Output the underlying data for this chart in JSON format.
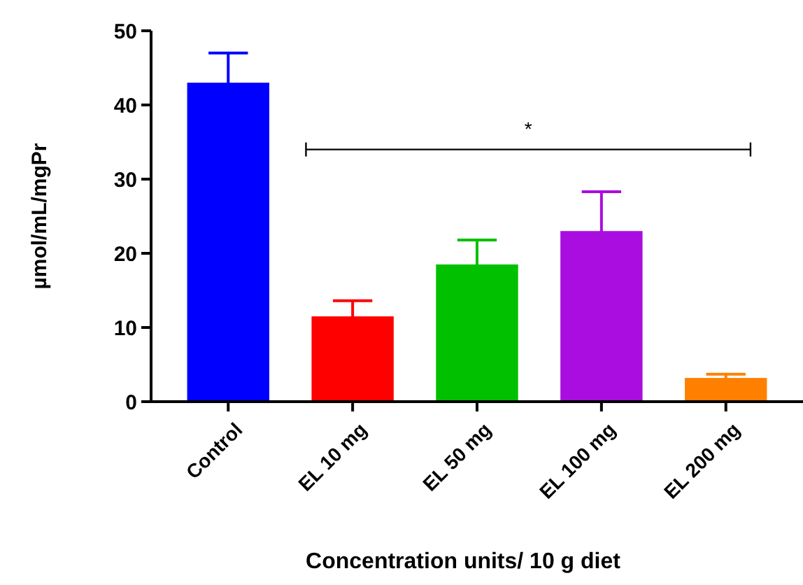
{
  "chart_data": {
    "type": "bar",
    "xlabel": "Concentration units/ 10 g diet",
    "ylabel": "µmol/mL/mgPr",
    "categories": [
      "Control",
      "EL 10 mg",
      "EL 50 mg",
      "EL 100 mg",
      "EL 200 mg"
    ],
    "values": [
      43,
      11.5,
      18.5,
      23,
      3.2
    ],
    "colors": [
      "#0000ff",
      "#ff0000",
      "#00c000",
      "#a90ddf",
      "#ff8000"
    ],
    "errors": [
      4,
      2.1,
      3.3,
      5.3,
      0.5
    ],
    "ylim": [
      0,
      50
    ],
    "yticks": [
      0,
      10,
      20,
      30,
      40,
      50
    ],
    "grid": false,
    "annotations": [
      "*"
    ]
  }
}
